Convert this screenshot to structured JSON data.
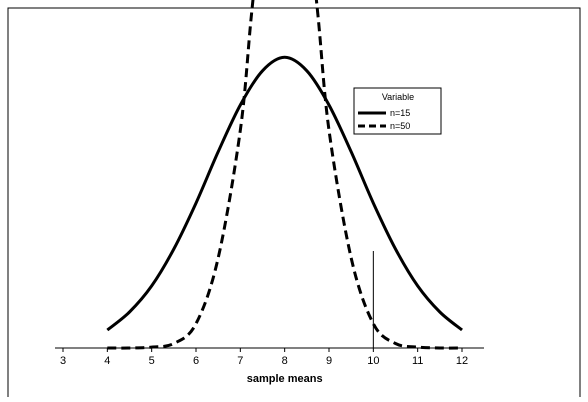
{
  "chart_data": {
    "type": "line",
    "title": "",
    "xlabel": "sample means",
    "ylabel": "",
    "xlim": [
      3,
      12
    ],
    "x_ticks": [
      "3",
      "4",
      "5",
      "6",
      "7",
      "8",
      "9",
      "10",
      "11",
      "12"
    ],
    "reference_line_x": 10,
    "legend": {
      "title": "Variable",
      "placement": "top-right",
      "entries": [
        "n=15",
        "n=50"
      ]
    },
    "series": [
      {
        "name": "n=15",
        "style": "solid",
        "x": [
          4.0,
          4.5,
          5.0,
          5.5,
          6.0,
          6.5,
          7.0,
          7.5,
          8.0,
          8.5,
          9.0,
          9.5,
          10.0,
          10.5,
          11.0,
          11.5,
          12.0
        ],
        "y": [
          0.02,
          0.04,
          0.069,
          0.11,
          0.161,
          0.218,
          0.27,
          0.308,
          0.323,
          0.308,
          0.27,
          0.218,
          0.161,
          0.11,
          0.069,
          0.04,
          0.02
        ]
      },
      {
        "name": "n=50",
        "style": "dashed",
        "x": [
          4.0,
          4.5,
          5.0,
          5.5,
          6.0,
          6.5,
          7.0,
          7.25,
          7.5,
          7.75,
          8.0,
          8.25,
          8.5,
          8.75,
          9.0,
          9.5,
          10.0,
          10.5,
          11.0,
          11.5,
          12.0
        ],
        "y": [
          0.0,
          0.0,
          0.001,
          0.005,
          0.027,
          0.1,
          0.242,
          0.37,
          0.484,
          0.565,
          0.59,
          0.565,
          0.484,
          0.37,
          0.242,
          0.1,
          0.027,
          0.005,
          0.001,
          0.0,
          0.0
        ]
      }
    ]
  }
}
